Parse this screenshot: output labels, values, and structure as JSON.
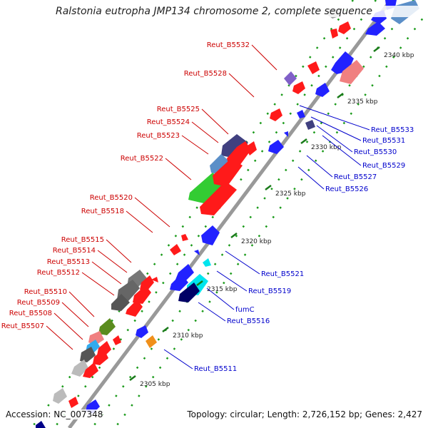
{
  "title": "Ralstonia eutropha JMP134 chromosome 2, complete sequence",
  "accession_label": "Accession: NC_007348",
  "topology_label": "Topology: circular; Length: 2,726,152 bp; Genes: 2,427",
  "colors": {
    "label_left": "#cc0000",
    "label_right": "#0000cc",
    "backbone": "#999999",
    "tick_dots": "#1a9a1a"
  },
  "ticks": [
    "2305 kbp",
    "2310 kbp",
    "2315 kbp",
    "2320 kbp",
    "2325 kbp",
    "2330 kbp",
    "2335 kbp",
    "2340 kbp"
  ],
  "labels_left": [
    "Reut_B5532",
    "Reut_B5528",
    "Reut_B5525",
    "Reut_B5524",
    "Reut_B5523",
    "Reut_B5522",
    "Reut_B5520",
    "Reut_B5518",
    "Reut_B5515",
    "Reut_B5514",
    "Reut_B5513",
    "Reut_B5512",
    "Reut_B5510",
    "Reut_B5509",
    "Reut_B5508",
    "Reut_B5507"
  ],
  "labels_right": [
    "Reut_B5533",
    "Reut_B5531",
    "Reut_B5530",
    "Reut_B5529",
    "Reut_B5527",
    "Reut_B5526",
    "Reut_B5521",
    "Reut_B5519",
    "fumC",
    "Reut_B5516",
    "Reut_B5511"
  ]
}
